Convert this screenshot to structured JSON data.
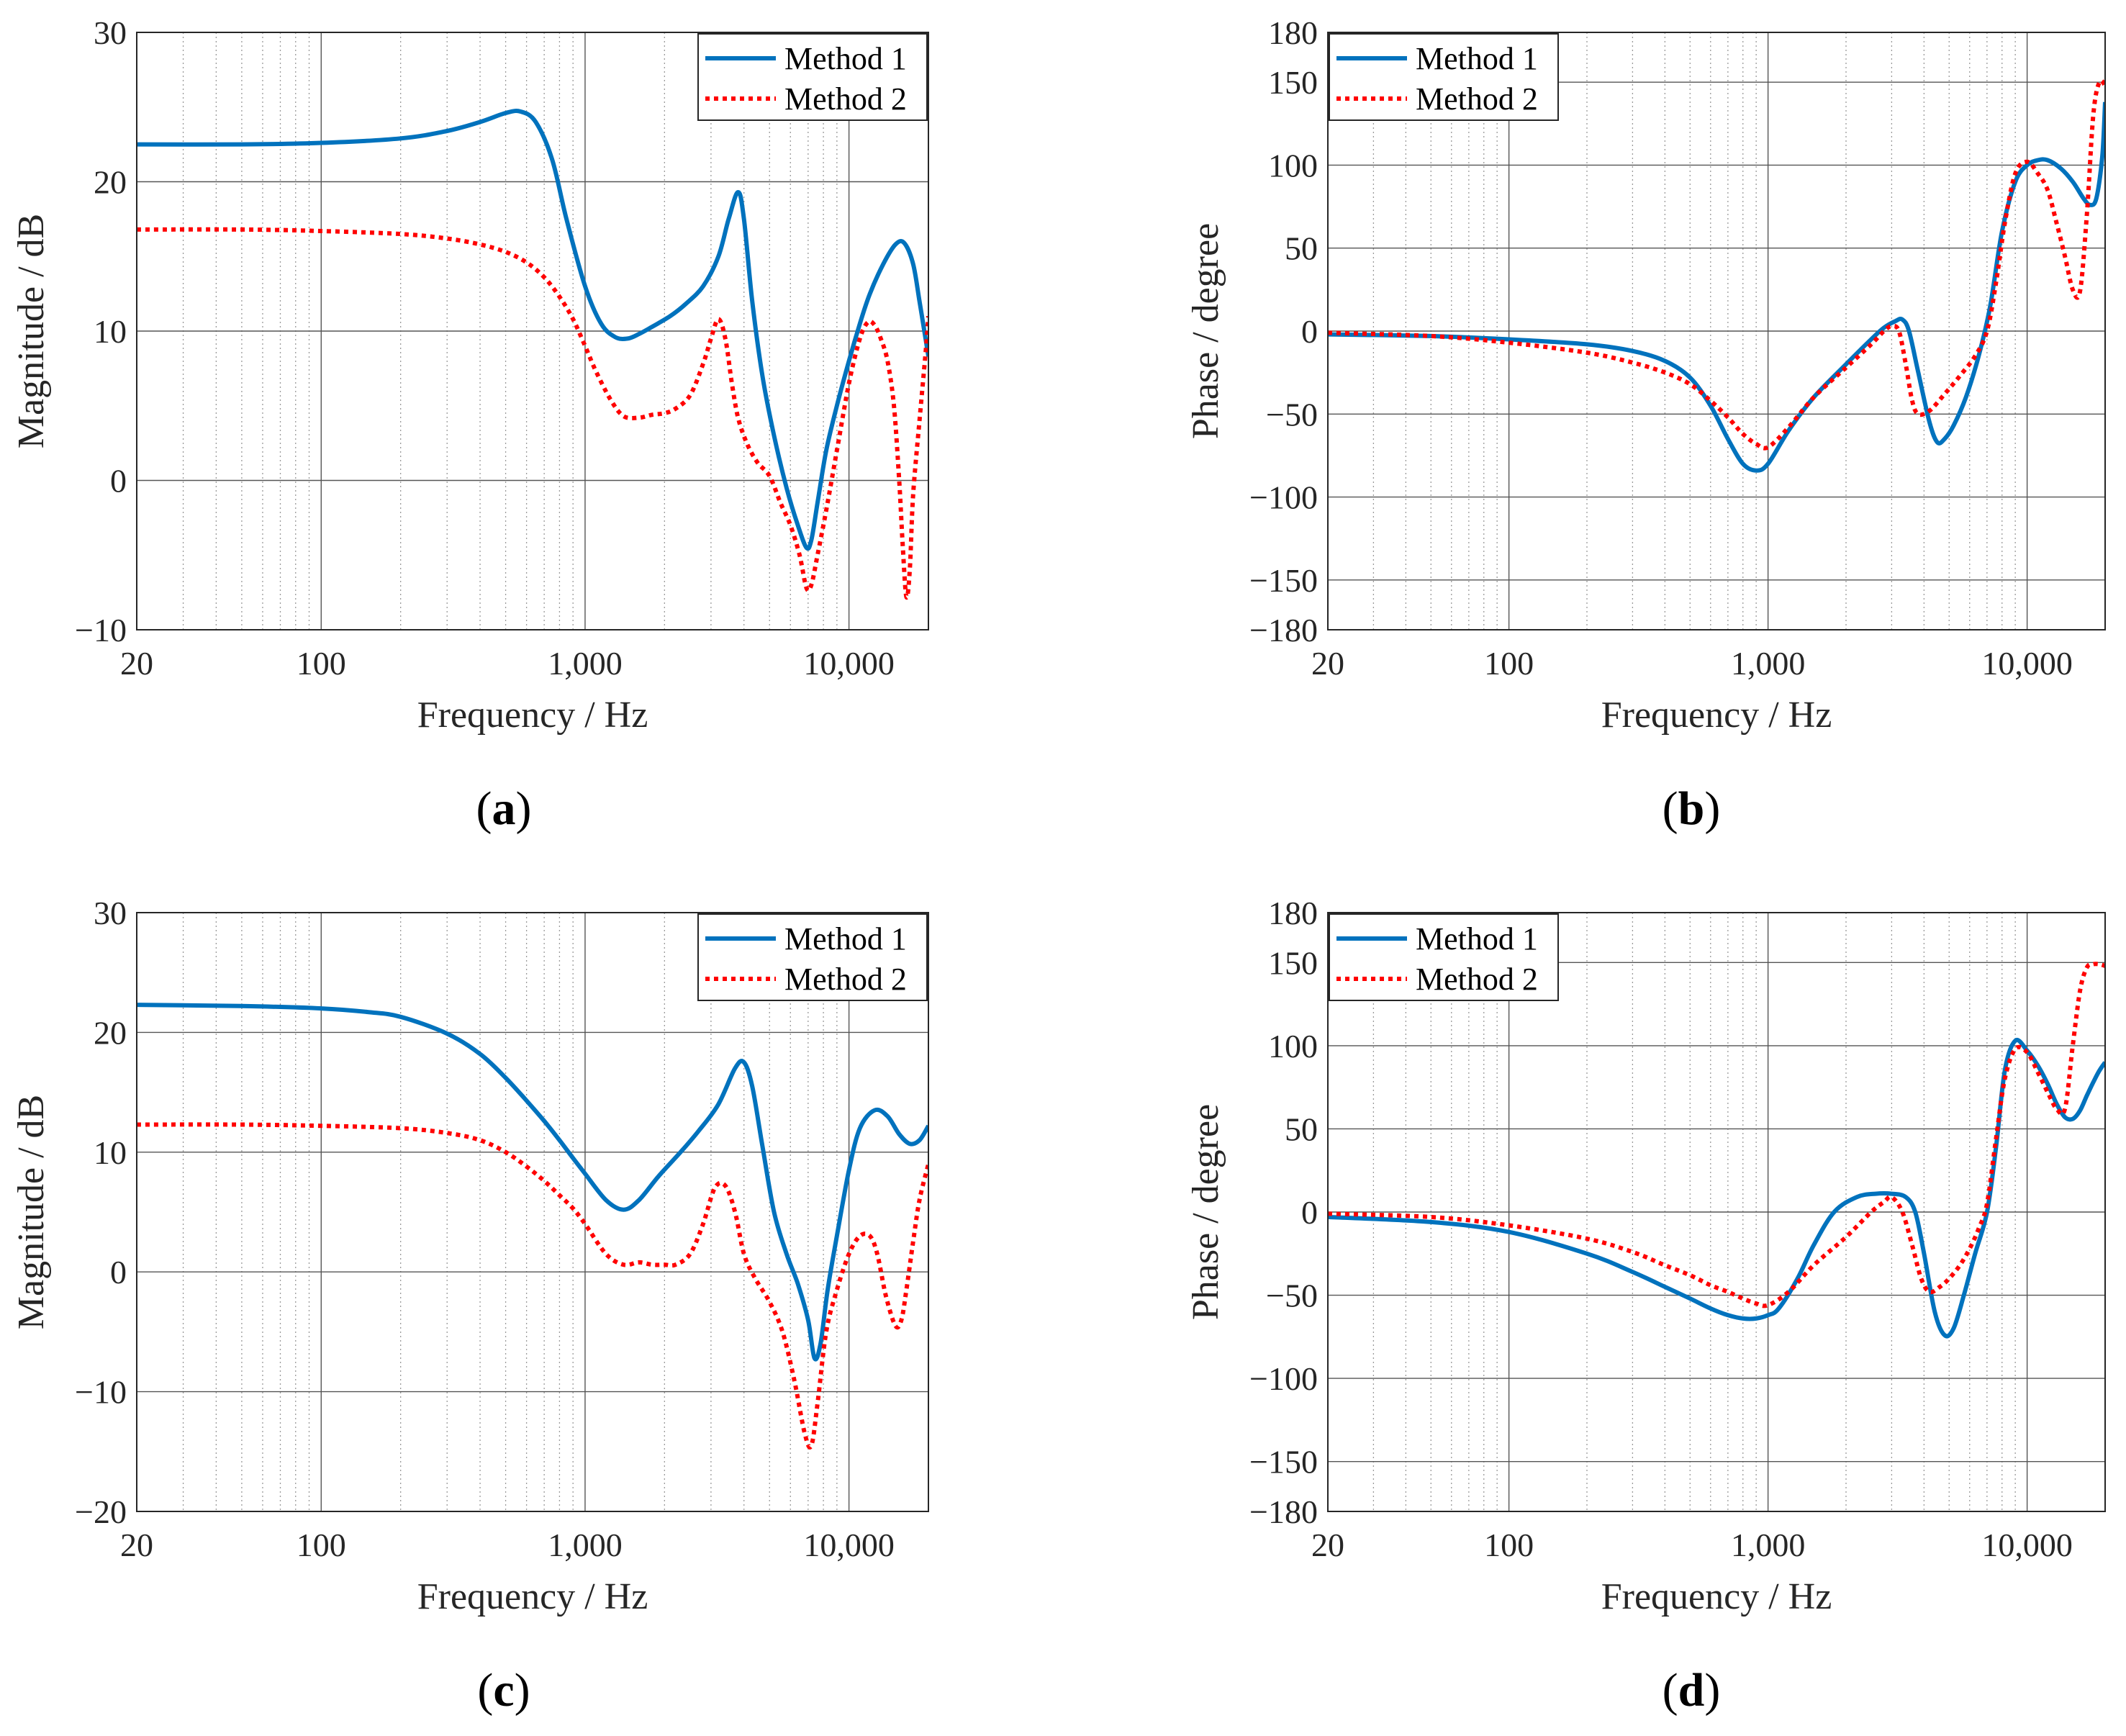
{
  "figure": {
    "series_styles": [
      {
        "name": "Method 1",
        "color": "#0072BD",
        "style": "solid"
      },
      {
        "name": "Method 2",
        "color": "#FF0000",
        "style": "dotted"
      }
    ]
  },
  "chart_data": [
    {
      "id": "a",
      "type": "line",
      "caption": "a",
      "xlabel": "Frequency / Hz",
      "ylabel": "Magnitude / dB",
      "xscale": "log",
      "xlim": [
        20,
        20000
      ],
      "ylim": [
        -10,
        30
      ],
      "xticks": [
        20,
        100,
        1000,
        10000
      ],
      "xtick_labels": [
        "20",
        "100",
        "1,000",
        "10,000"
      ],
      "yticks": [
        -10,
        0,
        10,
        20,
        30
      ],
      "ytick_labels": [
        "−10",
        "0",
        "10",
        "20",
        "30"
      ],
      "grid": true,
      "legend_position": "top-right",
      "series": [
        {
          "name": "Method 1",
          "color": "#0072BD",
          "style": "solid",
          "x": [
            20,
            50,
            100,
            200,
            300,
            400,
            500,
            570,
            650,
            750,
            850,
            1000,
            1150,
            1300,
            1450,
            1600,
            1800,
            2100,
            2400,
            2800,
            3200,
            3500,
            3800,
            4000,
            4300,
            4700,
            5200,
            5800,
            6400,
            6900,
            7200,
            7600,
            8200,
            9000,
            10000,
            11000,
            12000,
            13500,
            15000,
            16200,
            17500,
            18500,
            19500,
            20000
          ],
          "y": [
            22.5,
            22.5,
            22.6,
            22.9,
            23.4,
            24.0,
            24.6,
            24.7,
            24.0,
            21.5,
            17.5,
            13.0,
            10.5,
            9.6,
            9.5,
            9.8,
            10.3,
            11.0,
            11.8,
            13.0,
            15.0,
            17.5,
            19.3,
            17.5,
            12.0,
            7.0,
            3.0,
            -0.5,
            -3.0,
            -4.5,
            -4.0,
            -1.5,
            2.0,
            5.0,
            8.0,
            10.5,
            12.5,
            14.5,
            15.8,
            15.9,
            14.5,
            12.0,
            9.5,
            8.3
          ]
        },
        {
          "name": "Method 2",
          "color": "#FF0000",
          "style": "dotted",
          "x": [
            20,
            50,
            100,
            200,
            300,
            400,
            500,
            600,
            700,
            800,
            900,
            1000,
            1100,
            1250,
            1400,
            1600,
            1800,
            2000,
            2200,
            2500,
            2800,
            3000,
            3200,
            3400,
            3600,
            3800,
            4100,
            4500,
            5000,
            5500,
            6000,
            6500,
            6900,
            7200,
            7600,
            8200,
            9000,
            10000,
            11000,
            11800,
            12500,
            13200,
            14000,
            14800,
            15500,
            16000,
            16500,
            17000,
            17500,
            18500,
            19500,
            20000
          ],
          "y": [
            16.8,
            16.8,
            16.7,
            16.5,
            16.2,
            15.8,
            15.3,
            14.6,
            13.6,
            12.3,
            10.8,
            9.0,
            7.3,
            5.4,
            4.3,
            4.2,
            4.4,
            4.5,
            4.8,
            5.7,
            7.8,
            9.5,
            10.8,
            9.5,
            6.5,
            4.2,
            2.5,
            1.2,
            0.3,
            -1.5,
            -3.0,
            -5.0,
            -7.2,
            -7.0,
            -5.0,
            -2.0,
            2.0,
            6.5,
            9.5,
            10.6,
            10.4,
            9.5,
            8.0,
            5.0,
            0.0,
            -4.5,
            -7.8,
            -6.0,
            -1.0,
            4.0,
            8.5,
            11.0
          ]
        }
      ]
    },
    {
      "id": "b",
      "type": "line",
      "caption": "b",
      "xlabel": "Frequency / Hz",
      "ylabel": "Phase / degree",
      "xscale": "log",
      "xlim": [
        20,
        20000
      ],
      "ylim": [
        -180,
        180
      ],
      "xticks": [
        20,
        100,
        1000,
        10000
      ],
      "xtick_labels": [
        "20",
        "100",
        "1,000",
        "10,000"
      ],
      "yticks": [
        -180,
        -150,
        -100,
        -50,
        0,
        50,
        100,
        150,
        180
      ],
      "ytick_labels": [
        "−180",
        "−150",
        "−100",
        "−50",
        "0",
        "50",
        "100",
        "150",
        "180"
      ],
      "grid": true,
      "legend_position": "top-left",
      "series": [
        {
          "name": "Method 1",
          "color": "#0072BD",
          "style": "solid",
          "x": [
            20,
            50,
            100,
            200,
            300,
            400,
            500,
            600,
            700,
            800,
            900,
            1000,
            1200,
            1500,
            2000,
            2500,
            2800,
            3100,
            3300,
            3500,
            3800,
            4200,
            4500,
            4800,
            5200,
            5800,
            6500,
            7200,
            8000,
            9000,
            10000,
            11000,
            12000,
            13500,
            15000,
            16500,
            17500,
            18500,
            19500,
            20000
          ],
          "y": [
            -2,
            -3,
            -5,
            -8,
            -12,
            -18,
            -28,
            -45,
            -65,
            -80,
            -84,
            -80,
            -60,
            -40,
            -20,
            -5,
            2,
            6,
            7,
            0,
            -25,
            -55,
            -67,
            -65,
            -57,
            -40,
            -15,
            15,
            60,
            90,
            100,
            103,
            103,
            98,
            90,
            80,
            76,
            80,
            105,
            138
          ]
        },
        {
          "name": "Method 2",
          "color": "#FF0000",
          "style": "dotted",
          "x": [
            20,
            50,
            100,
            200,
            300,
            400,
            500,
            600,
            700,
            800,
            900,
            1000,
            1200,
            1500,
            2000,
            2500,
            2800,
            3000,
            3200,
            3400,
            3600,
            3800,
            4200,
            4800,
            5500,
            6300,
            7000,
            7600,
            8200,
            9000,
            10000,
            11000,
            12000,
            13000,
            14000,
            15000,
            16000,
            17000,
            18000,
            19000,
            20000
          ],
          "y": [
            -1,
            -3,
            -7,
            -13,
            -19,
            -25,
            -32,
            -42,
            -52,
            -62,
            -68,
            -70,
            -58,
            -40,
            -22,
            -8,
            0,
            3,
            0,
            -20,
            -42,
            -50,
            -48,
            -38,
            -27,
            -15,
            0,
            30,
            65,
            95,
            102,
            95,
            85,
            65,
            45,
            25,
            24,
            70,
            130,
            150,
            148
          ]
        }
      ]
    },
    {
      "id": "c",
      "type": "line",
      "caption": "c",
      "xlabel": "Frequency / Hz",
      "ylabel": "Magnitude / dB",
      "xscale": "log",
      "xlim": [
        20,
        20000
      ],
      "ylim": [
        -20,
        30
      ],
      "xticks": [
        20,
        100,
        1000,
        10000
      ],
      "xtick_labels": [
        "20",
        "100",
        "1,000",
        "10,000"
      ],
      "yticks": [
        -20,
        -10,
        0,
        10,
        20,
        30
      ],
      "ytick_labels": [
        "−20",
        "−10",
        "0",
        "10",
        "20",
        "30"
      ],
      "grid": true,
      "legend_position": "top-right",
      "series": [
        {
          "name": "Method 1",
          "color": "#0072BD",
          "style": "solid",
          "x": [
            20,
            50,
            100,
            150,
            200,
            300,
            400,
            500,
            600,
            700,
            800,
            900,
            1000,
            1200,
            1400,
            1600,
            1900,
            2300,
            2700,
            3200,
            3700,
            4000,
            4300,
            4700,
            5200,
            5800,
            6400,
            7000,
            7400,
            7800,
            8300,
            9000,
            10000,
            11000,
            12500,
            14000,
            15500,
            17000,
            18500,
            20000
          ],
          "y": [
            22.3,
            22.2,
            22.0,
            21.7,
            21.3,
            19.9,
            18.2,
            16.2,
            14.3,
            12.6,
            11.0,
            9.5,
            8.2,
            6.0,
            5.2,
            6.0,
            8.0,
            10.0,
            11.8,
            14.0,
            17.0,
            17.5,
            15.5,
            10.5,
            5.0,
            1.5,
            -1.0,
            -4.0,
            -7.2,
            -6.0,
            -1.5,
            3.0,
            8.5,
            12.0,
            13.5,
            13.0,
            11.5,
            10.7,
            11.0,
            12.2
          ]
        },
        {
          "name": "Method 2",
          "color": "#FF0000",
          "style": "dotted",
          "x": [
            20,
            50,
            100,
            200,
            300,
            400,
            500,
            600,
            700,
            800,
            900,
            1000,
            1200,
            1400,
            1600,
            1800,
            2000,
            2200,
            2500,
            2800,
            3100,
            3400,
            3700,
            4000,
            4400,
            5000,
            5600,
            6200,
            6800,
            7200,
            7600,
            8200,
            9000,
            10000,
            11000,
            12000,
            12800,
            13800,
            15000,
            15800,
            16500,
            17500,
            18500,
            20000
          ],
          "y": [
            12.3,
            12.3,
            12.2,
            12.0,
            11.6,
            11.0,
            10.0,
            8.8,
            7.6,
            6.4,
            5.3,
            4.0,
            1.5,
            0.6,
            0.8,
            0.6,
            0.6,
            0.6,
            1.5,
            4.0,
            7.0,
            7.2,
            5.0,
            1.5,
            -0.5,
            -2.5,
            -5.0,
            -9.0,
            -13.5,
            -14.5,
            -11.0,
            -5.0,
            -1.5,
            1.5,
            3.0,
            3.0,
            1.5,
            -2.0,
            -4.5,
            -4.0,
            -1.5,
            2.5,
            6.0,
            9.0
          ]
        }
      ]
    },
    {
      "id": "d",
      "type": "line",
      "caption": "d",
      "xlabel": "Frequency / Hz",
      "ylabel": "Phase / degree",
      "xscale": "log",
      "xlim": [
        20,
        20000
      ],
      "ylim": [
        -180,
        180
      ],
      "xticks": [
        20,
        100,
        1000,
        10000
      ],
      "xtick_labels": [
        "20",
        "100",
        "1,000",
        "10,000"
      ],
      "yticks": [
        -180,
        -150,
        -100,
        -50,
        0,
        50,
        100,
        150,
        180
      ],
      "ytick_labels": [
        "−180",
        "−150",
        "−100",
        "−50",
        "0",
        "50",
        "100",
        "150",
        "180"
      ],
      "grid": true,
      "legend_position": "top-left",
      "series": [
        {
          "name": "Method 1",
          "color": "#0072BD",
          "style": "solid",
          "x": [
            20,
            50,
            100,
            200,
            300,
            400,
            500,
            600,
            700,
            800,
            900,
            1000,
            1100,
            1300,
            1500,
            1800,
            2200,
            2600,
            3000,
            3400,
            3700,
            4000,
            4400,
            4800,
            5200,
            5700,
            6300,
            7000,
            7600,
            8200,
            9000,
            10000,
            11000,
            12000,
            13000,
            14000,
            15000,
            16000,
            17000,
            18000,
            19000,
            20000
          ],
          "y": [
            -3,
            -6,
            -12,
            -25,
            -36,
            -45,
            -52,
            -58,
            -62,
            -64,
            -64,
            -62,
            -58,
            -40,
            -20,
            0,
            9,
            11,
            11,
            9,
            0,
            -25,
            -60,
            -74,
            -70,
            -50,
            -25,
            0,
            40,
            85,
            103,
            97,
            88,
            77,
            65,
            57,
            56,
            61,
            70,
            78,
            85,
            90
          ]
        },
        {
          "name": "Method 2",
          "color": "#FF0000",
          "style": "dotted",
          "x": [
            20,
            50,
            100,
            200,
            300,
            400,
            500,
            600,
            700,
            800,
            900,
            1000,
            1200,
            1500,
            2000,
            2500,
            2800,
            3000,
            3300,
            3600,
            3900,
            4200,
            4600,
            5000,
            5500,
            6000,
            6500,
            7000,
            7600,
            8200,
            9000,
            10000,
            11000,
            12000,
            13000,
            14000,
            15000,
            16000,
            17000,
            18000,
            19000,
            20000
          ],
          "y": [
            -1,
            -3,
            -8,
            -16,
            -24,
            -32,
            -38,
            -44,
            -48,
            -52,
            -55,
            -56,
            -48,
            -32,
            -15,
            0,
            6,
            9,
            0,
            -20,
            -40,
            -48,
            -45,
            -40,
            -32,
            -22,
            -10,
            5,
            45,
            80,
            98,
            96,
            84,
            72,
            62,
            62,
            100,
            133,
            147,
            149,
            149,
            148
          ]
        }
      ]
    }
  ]
}
